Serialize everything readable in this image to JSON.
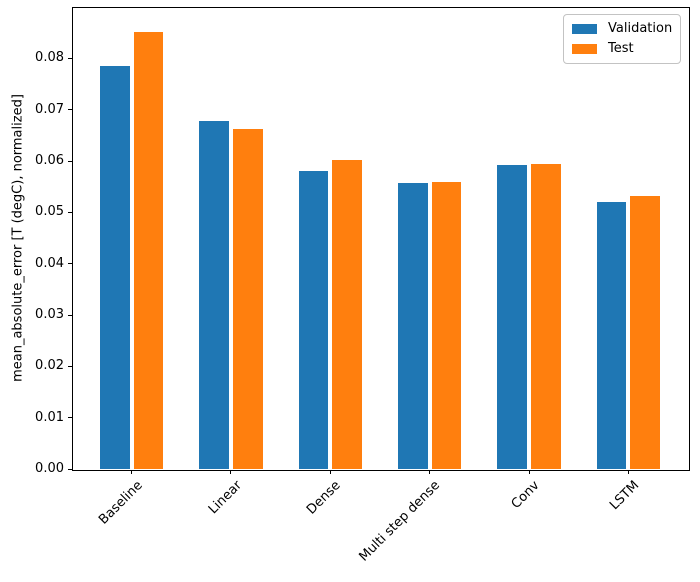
{
  "chart_data": {
    "type": "bar",
    "title": "",
    "xlabel": "",
    "ylabel": "mean_absolute_error [T (degC), normalized]",
    "categories": [
      "Baseline",
      "Linear",
      "Dense",
      "Multi step dense",
      "Conv",
      "LSTM"
    ],
    "series": [
      {
        "name": "Validation",
        "color": "#1f77b4",
        "values": [
          0.0785,
          0.0678,
          0.0581,
          0.0557,
          0.0593,
          0.0521
        ]
      },
      {
        "name": "Test",
        "color": "#ff7f0e",
        "values": [
          0.0852,
          0.0662,
          0.0602,
          0.056,
          0.0595,
          0.0531
        ]
      }
    ],
    "ylim": [
      0,
      0.09
    ],
    "xlim": [
      -0.6,
      5.6
    ],
    "yticks": [
      0,
      0.01,
      0.02,
      0.03,
      0.04,
      0.05,
      0.06,
      0.07,
      0.08
    ],
    "ytick_labels": [
      "0.00",
      "0.01",
      "0.02",
      "0.03",
      "0.04",
      "0.05",
      "0.06",
      "0.07",
      "0.08"
    ],
    "xtick_rotation_deg": 45,
    "bar_width_units": 0.3,
    "bar_offset_units": 0.17,
    "grid": false,
    "legend": {
      "location": "upper right",
      "entries": [
        "Validation",
        "Test"
      ]
    },
    "axis_color": "#000000",
    "background": "#ffffff"
  }
}
